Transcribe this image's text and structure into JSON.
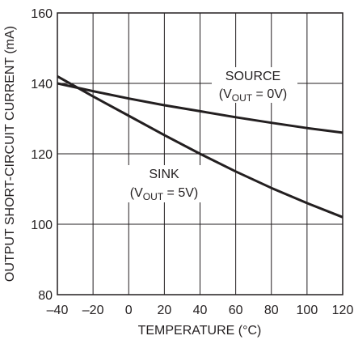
{
  "chart_data": {
    "type": "line",
    "xlabel": "TEMPERATURE (°C)",
    "ylabel": "OUTPUT SHORT-CIRCUIT CURRENT (mA)",
    "xlim": [
      -40,
      120
    ],
    "ylim": [
      80,
      160
    ],
    "x_ticks": [
      "–40",
      "–20",
      "0",
      "20",
      "40",
      "60",
      "80",
      "100",
      "120"
    ],
    "y_ticks": [
      "80",
      "100",
      "120",
      "140",
      "160"
    ],
    "x_gridlines": [
      -20,
      0,
      20,
      40,
      60,
      80,
      100
    ],
    "y_gridlines": [
      100,
      120,
      140
    ],
    "grid": true,
    "colors": {
      "line": "#231f20",
      "grid": "#231f20",
      "text": "#231f20"
    },
    "series": [
      {
        "name": "SOURCE",
        "x": [
          -40,
          -20,
          0,
          20,
          40,
          60,
          80,
          100,
          120
        ],
        "y": [
          140.0,
          137.8,
          135.7,
          133.8,
          132.1,
          130.4,
          128.8,
          127.3,
          126.0
        ]
      },
      {
        "name": "SINK",
        "x": [
          -40,
          -20,
          0,
          20,
          40,
          60,
          80,
          100,
          120
        ],
        "y": [
          142.0,
          136.3,
          130.8,
          125.3,
          120.0,
          115.0,
          110.3,
          106.0,
          102.0
        ]
      }
    ],
    "annotations": {
      "source_line1": "SOURCE",
      "source_v": "V",
      "source_sub": "OUT",
      "source_eq": " = 0V)",
      "sink_line1": "SINK",
      "sink_v": "V",
      "sink_sub": "OUT",
      "sink_eq": " = 5V)",
      "open_paren": "("
    }
  }
}
